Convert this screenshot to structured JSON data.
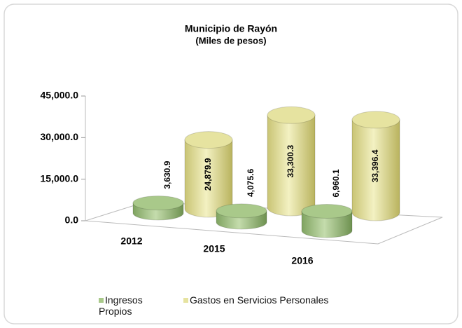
{
  "chart_data": {
    "type": "bar3d",
    "title": "Municipio de Rayón",
    "subtitle": "(Miles de pesos)",
    "categories": [
      "2012",
      "2015",
      "2016"
    ],
    "series": [
      {
        "name": "Ingresos Propios",
        "color": "#a9c98a",
        "values": [
          3630.9,
          4075.6,
          6960.1
        ],
        "value_labels": [
          "3,630.9",
          "4,075.6",
          "6,960.1"
        ]
      },
      {
        "name": "Gastos en Servicios Personales",
        "color": "#e6e3a0",
        "values": [
          24879.9,
          33300.3,
          33396.4
        ],
        "value_labels": [
          "24,879.9",
          "33,300.3",
          "33,396.4"
        ]
      }
    ],
    "ylim": [
      0,
      45000
    ],
    "yticks": [
      {
        "value": 0,
        "label": "0.0"
      },
      {
        "value": 15000,
        "label": "15,000.0"
      },
      {
        "value": 30000,
        "label": "30,000.0"
      },
      {
        "value": 45000,
        "label": "45,000.0"
      }
    ]
  }
}
